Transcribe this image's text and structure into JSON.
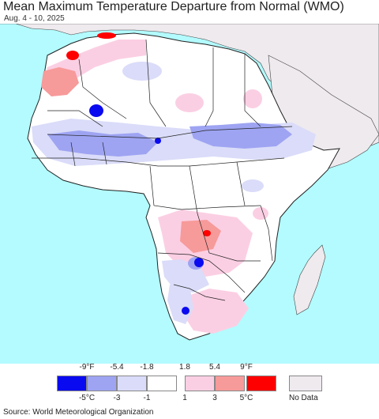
{
  "header": {
    "title": "Mean Maximum Temperature Departure from Normal (WMO)",
    "date_range": "Aug. 4 - 10, 2025"
  },
  "colors": {
    "ocean": "#b3fbff",
    "land": "#ffffff",
    "no_data": "#eeeaee",
    "border": "#333333"
  },
  "legend": {
    "fahrenheit_labels": [
      "-9°F",
      "-5.4",
      "-1.8",
      "1.8",
      "5.4",
      "9°F"
    ],
    "celsius_labels": [
      "-5°C",
      "-3",
      "-1",
      "1",
      "3",
      "5°C"
    ],
    "bins": [
      {
        "color": "#0a0af0"
      },
      {
        "color": "#9ea4f2"
      },
      {
        "color": "#dadcf9"
      },
      {
        "color": "#ffffff"
      },
      {
        "color": "#fbcfe3"
      },
      {
        "color": "#f79a9a"
      },
      {
        "color": "#ff0000"
      }
    ],
    "no_data_label": "No Data"
  },
  "footer": {
    "source": "Source: World Meteorological Organization"
  }
}
